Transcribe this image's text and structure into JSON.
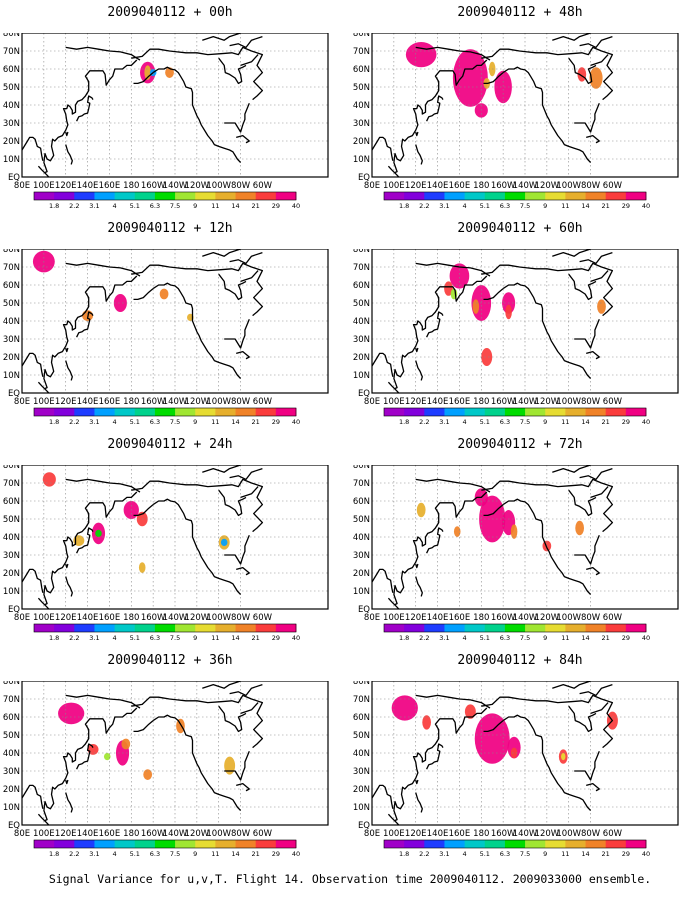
{
  "footer": "Signal Variance for u,v,T. Flight 14. Observation time 2009040112. 2009033000 ensemble.",
  "x_ticks": [
    "80E",
    "100E",
    "120E",
    "140E",
    "160E",
    "180",
    "160W",
    "140W",
    "120W",
    "100W",
    "80W",
    "60W"
  ],
  "y_ticks": [
    "EQ",
    "10N",
    "20N",
    "30N",
    "40N",
    "50N",
    "60N",
    "70N",
    "80N"
  ],
  "colorbar": {
    "labels": [
      "1.8",
      "2.2",
      "3.1",
      "4",
      "5.1",
      "6.3",
      "7.5",
      "9",
      "11",
      "14",
      "21",
      "29",
      "40"
    ],
    "colors": [
      "#a000c8",
      "#8200dc",
      "#1e3cff",
      "#00a0ff",
      "#00c8c8",
      "#00d28c",
      "#00dc00",
      "#a0e632",
      "#e6dc32",
      "#e6af2d",
      "#f08228",
      "#fa3c3c",
      "#f00082"
    ]
  },
  "chart_data": [
    {
      "type": "heatmap",
      "title": "2009040112 + 00h",
      "col": 0,
      "row": 0,
      "blobs": [
        [
          195,
          58,
          46,
          7,
          6
        ],
        [
          195,
          58,
          16,
          3,
          4
        ],
        [
          215,
          58,
          22,
          4,
          3
        ],
        [
          200,
          58,
          4,
          3,
          2
        ]
      ]
    },
    {
      "type": "heatmap",
      "title": "2009040112 + 48h",
      "col": 1,
      "row": 0,
      "blobs": [
        [
          170,
          55,
          80,
          16,
          16
        ],
        [
          125,
          68,
          90,
          14,
          7
        ],
        [
          180,
          37,
          150,
          6,
          4
        ],
        [
          200,
          50,
          60,
          8,
          9
        ],
        [
          285,
          55,
          28,
          6,
          6
        ],
        [
          272,
          57,
          30,
          4,
          4
        ],
        [
          190,
          60,
          16,
          3,
          4
        ],
        [
          185,
          52,
          14,
          3,
          3
        ]
      ]
    },
    {
      "type": "heatmap",
      "title": "2009040112 + 12h",
      "col": 0,
      "row": 1,
      "blobs": [
        [
          170,
          50,
          60,
          6,
          5
        ],
        [
          140,
          43,
          22,
          5,
          3
        ],
        [
          100,
          73,
          90,
          10,
          6
        ],
        [
          210,
          55,
          28,
          4,
          3
        ],
        [
          234,
          42,
          18,
          3,
          2
        ]
      ]
    },
    {
      "type": "heatmap",
      "title": "2009040112 + 60h",
      "col": 1,
      "row": 1,
      "blobs": [
        [
          180,
          50,
          140,
          9,
          10
        ],
        [
          160,
          65,
          140,
          9,
          7
        ],
        [
          205,
          50,
          40,
          6,
          6
        ],
        [
          205,
          45,
          30,
          3,
          4
        ],
        [
          175,
          48,
          22,
          3,
          4
        ],
        [
          290,
          48,
          22,
          4,
          4
        ],
        [
          150,
          58,
          30,
          4,
          4
        ],
        [
          185,
          20,
          35,
          5,
          5
        ],
        [
          155,
          55,
          10,
          3,
          3
        ]
      ]
    },
    {
      "type": "heatmap",
      "title": "2009040112 + 24h",
      "col": 0,
      "row": 2,
      "blobs": [
        [
          150,
          42,
          80,
          6,
          6
        ],
        [
          132,
          38,
          20,
          5,
          3
        ],
        [
          180,
          55,
          40,
          7,
          5
        ],
        [
          190,
          50,
          30,
          5,
          4
        ],
        [
          265,
          37,
          14,
          5,
          4
        ],
        [
          265,
          37,
          5,
          3,
          2
        ],
        [
          150,
          42,
          8,
          3,
          2
        ],
        [
          105,
          72,
          30,
          6,
          4
        ],
        [
          190,
          23,
          14,
          3,
          3
        ]
      ]
    },
    {
      "type": "heatmap",
      "title": "2009040112 + 72h",
      "col": 1,
      "row": 2,
      "blobs": [
        [
          190,
          50,
          150,
          12,
          13
        ],
        [
          205,
          48,
          50,
          6,
          7
        ],
        [
          210,
          43,
          26,
          3,
          4
        ],
        [
          158,
          43,
          22,
          3,
          3
        ],
        [
          270,
          45,
          25,
          4,
          4
        ],
        [
          180,
          62,
          50,
          6,
          5
        ],
        [
          125,
          55,
          20,
          4,
          4
        ],
        [
          240,
          35,
          30,
          4,
          3
        ]
      ]
    },
    {
      "type": "heatmap",
      "title": "2009040112 + 36h",
      "col": 0,
      "row": 3,
      "blobs": [
        [
          172,
          40,
          55,
          6,
          7
        ],
        [
          145,
          42,
          35,
          5,
          3
        ],
        [
          175,
          45,
          25,
          4,
          3
        ],
        [
          158,
          38,
          10,
          3,
          2
        ],
        [
          225,
          55,
          26,
          4,
          4
        ],
        [
          270,
          33,
          18,
          5,
          5
        ],
        [
          125,
          62,
          40,
          12,
          6
        ],
        [
          195,
          28,
          22,
          4,
          3
        ]
      ]
    },
    {
      "type": "heatmap",
      "title": "2009040112 + 84h",
      "col": 1,
      "row": 3,
      "blobs": [
        [
          190,
          48,
          150,
          16,
          14
        ],
        [
          210,
          43,
          45,
          6,
          6
        ],
        [
          210,
          40,
          30,
          3,
          3
        ],
        [
          255,
          38,
          30,
          4,
          4
        ],
        [
          255,
          38,
          12,
          2,
          2
        ],
        [
          110,
          65,
          60,
          12,
          7
        ],
        [
          130,
          57,
          30,
          4,
          4
        ],
        [
          170,
          63,
          30,
          5,
          4
        ],
        [
          300,
          58,
          30,
          5,
          5
        ]
      ]
    }
  ]
}
